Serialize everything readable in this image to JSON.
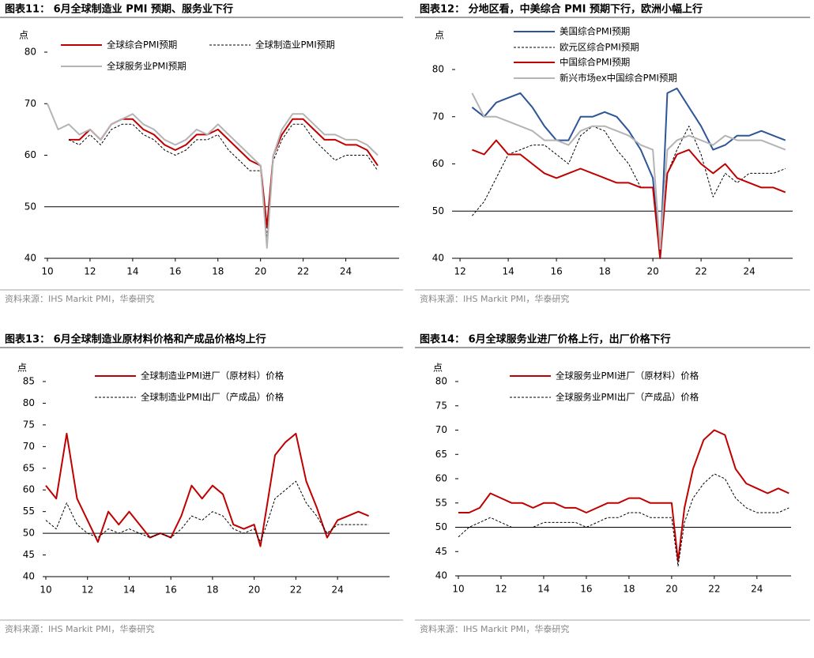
{
  "chart_data": [
    {
      "type": "line",
      "title": "图表11： 6月全球制造业 PMI 预期、服务业下行",
      "source": "资料来源：IHS Markit PMI，华泰研究",
      "unit": "点",
      "x": [
        10,
        10.5,
        11,
        11.5,
        12,
        12.5,
        13,
        13.5,
        14,
        14.5,
        15,
        15.5,
        16,
        16.5,
        17,
        17.5,
        18,
        18.5,
        19,
        19.5,
        20,
        20.3,
        20.6,
        21,
        21.5,
        22,
        22.5,
        23,
        23.5,
        24,
        24.5,
        25,
        25.5
      ],
      "xlim": [
        10,
        26.5
      ],
      "xticks": [
        10,
        12,
        14,
        16,
        18,
        20,
        22,
        24
      ],
      "ylim": [
        40,
        80
      ],
      "yticks": [
        40,
        50,
        60,
        70,
        80
      ],
      "reference_line": 50,
      "series": [
        {
          "name": "全球综合PMI预期",
          "color": "#c00000",
          "style": "solid",
          "values": [
            null,
            null,
            63,
            63,
            65,
            63,
            66,
            67,
            67,
            65,
            64,
            62,
            61,
            62,
            64,
            64,
            65,
            63,
            61,
            59,
            58,
            46,
            60,
            64,
            67,
            67,
            65,
            63,
            63,
            62,
            62,
            61,
            58
          ]
        },
        {
          "name": "全球制造业PMI预期",
          "color": "#000000",
          "style": "dashed",
          "values": [
            null,
            null,
            63,
            62,
            64,
            62,
            65,
            66,
            66,
            64,
            63,
            61,
            60,
            61,
            63,
            63,
            64,
            61,
            59,
            57,
            57,
            44,
            59,
            63,
            66,
            66,
            63,
            61,
            59,
            60,
            60,
            60,
            57
          ]
        },
        {
          "name": "全球服务业PMI预期",
          "color": "#b4b4b4",
          "style": "solid",
          "values": [
            70,
            65,
            66,
            64,
            65,
            63,
            66,
            67,
            68,
            66,
            65,
            63,
            62,
            63,
            65,
            64,
            66,
            64,
            62,
            60,
            58,
            42,
            60,
            65,
            68,
            68,
            66,
            64,
            64,
            63,
            63,
            62,
            60
          ]
        }
      ]
    },
    {
      "type": "line",
      "title": "图表12： 分地区看，中美综合 PMI 预期下行，欧洲小幅上行",
      "source": "资料来源：IHS Markit PMI，华泰研究",
      "unit": "点",
      "x": [
        12.5,
        13,
        13.5,
        14,
        14.5,
        15,
        15.5,
        16,
        16.5,
        17,
        17.5,
        18,
        18.5,
        19,
        19.5,
        20,
        20.3,
        20.6,
        21,
        21.5,
        22,
        22.5,
        23,
        23.5,
        24,
        24.5,
        25,
        25.5
      ],
      "xlim": [
        11.8,
        25.8
      ],
      "xticks": [
        12,
        14,
        16,
        18,
        20,
        22,
        24
      ],
      "ylim": [
        40,
        80
      ],
      "yticks": [
        40,
        50,
        60,
        70,
        80
      ],
      "reference_line": 50,
      "series": [
        {
          "name": "美国综合PMI预期",
          "color": "#2e5597",
          "style": "solid",
          "values": [
            72,
            70,
            73,
            74,
            75,
            72,
            68,
            65,
            65,
            70,
            70,
            71,
            70,
            67,
            63,
            57,
            40,
            75,
            76,
            72,
            68,
            63,
            64,
            66,
            66,
            67,
            66,
            65
          ]
        },
        {
          "name": "欧元区综合PMI预期",
          "color": "#000000",
          "style": "dashed",
          "values": [
            49,
            52,
            57,
            62,
            63,
            64,
            64,
            62,
            60,
            66,
            68,
            67,
            63,
            60,
            55,
            55,
            40,
            58,
            63,
            68,
            62,
            53,
            58,
            56,
            58,
            58,
            58,
            59
          ]
        },
        {
          "name": "中国综合PMI预期",
          "color": "#c00000",
          "style": "solid",
          "values": [
            63,
            62,
            65,
            62,
            62,
            60,
            58,
            57,
            58,
            59,
            58,
            57,
            56,
            56,
            55,
            55,
            40,
            58,
            62,
            63,
            60,
            58,
            60,
            57,
            56,
            55,
            55,
            54
          ]
        },
        {
          "name": "新兴市场ex中国综合PMI预期",
          "color": "#b4b4b4",
          "style": "solid",
          "values": [
            75,
            70,
            70,
            69,
            68,
            67,
            65,
            65,
            64,
            67,
            68,
            68,
            67,
            66,
            64,
            63,
            42,
            63,
            65,
            66,
            65,
            64,
            66,
            65,
            65,
            65,
            64,
            63
          ]
        }
      ]
    },
    {
      "type": "line",
      "title": "图表13： 6月全球制造业原材料价格和产成品价格均上行",
      "source": "资料来源：IHS Markit PMI，华泰研究",
      "unit": "点",
      "x": [
        10,
        10.5,
        11,
        11.5,
        12,
        12.5,
        13,
        13.5,
        14,
        14.5,
        15,
        15.5,
        16,
        16.5,
        17,
        17.5,
        18,
        18.5,
        19,
        19.5,
        20,
        20.3,
        20.6,
        21,
        21.5,
        22,
        22.5,
        23,
        23.5,
        24,
        24.5,
        25,
        25.5
      ],
      "xlim": [
        10,
        26.5
      ],
      "xticks": [
        10,
        12,
        14,
        16,
        18,
        20,
        22,
        24
      ],
      "ylim": [
        40,
        85
      ],
      "yticks": [
        40,
        45,
        50,
        55,
        60,
        65,
        70,
        75,
        80,
        85
      ],
      "reference_line": 50,
      "series": [
        {
          "name": "全球制造业PMI进厂（原材料）价格",
          "color": "#c00000",
          "style": "solid",
          "values": [
            61,
            58,
            73,
            58,
            53,
            48,
            55,
            52,
            55,
            52,
            49,
            50,
            49,
            54,
            61,
            58,
            61,
            59,
            52,
            51,
            52,
            47,
            56,
            68,
            71,
            73,
            62,
            56,
            49,
            53,
            54,
            55,
            54
          ]
        },
        {
          "name": "全球制造业PMI出厂（产成品）价格",
          "color": "#000000",
          "style": "dashed",
          "values": [
            53,
            51,
            57,
            52,
            50,
            49,
            51,
            50,
            51,
            50,
            49,
            50,
            49,
            51,
            54,
            53,
            55,
            54,
            51,
            50,
            51,
            48,
            52,
            58,
            60,
            62,
            57,
            54,
            50,
            52,
            52,
            52,
            52
          ]
        }
      ]
    },
    {
      "type": "line",
      "title": "图表14： 6月全球服务业进厂价格上行，出厂价格下行",
      "source": "资料来源：IHS Markit PMI，华泰研究",
      "unit": "点",
      "x": [
        10,
        10.5,
        11,
        11.5,
        12,
        12.5,
        13,
        13.5,
        14,
        14.5,
        15,
        15.5,
        16,
        16.5,
        17,
        17.5,
        18,
        18.5,
        19,
        19.5,
        20,
        20.3,
        20.6,
        21,
        21.5,
        22,
        22.5,
        23,
        23.5,
        24,
        24.5,
        25,
        25.5
      ],
      "xlim": [
        10,
        25.6
      ],
      "xticks": [
        10,
        12,
        14,
        16,
        18,
        20,
        22,
        24
      ],
      "ylim": [
        40,
        80
      ],
      "yticks": [
        40,
        45,
        50,
        55,
        60,
        65,
        70,
        75,
        80
      ],
      "reference_line": 50,
      "series": [
        {
          "name": "全球服务业PMI进厂（原材料）价格",
          "color": "#c00000",
          "style": "solid",
          "values": [
            53,
            53,
            54,
            57,
            56,
            55,
            55,
            54,
            55,
            55,
            54,
            54,
            53,
            54,
            55,
            55,
            56,
            56,
            55,
            55,
            55,
            43,
            54,
            62,
            68,
            70,
            69,
            62,
            59,
            58,
            57,
            58,
            57
          ]
        },
        {
          "name": "全球服务业PMI出厂（产成品）价格",
          "color": "#000000",
          "style": "dashed",
          "values": [
            48,
            50,
            51,
            52,
            51,
            50,
            50,
            50,
            51,
            51,
            51,
            51,
            50,
            51,
            52,
            52,
            53,
            53,
            52,
            52,
            52,
            42,
            51,
            56,
            59,
            61,
            60,
            56,
            54,
            53,
            53,
            53,
            54
          ]
        }
      ]
    }
  ]
}
